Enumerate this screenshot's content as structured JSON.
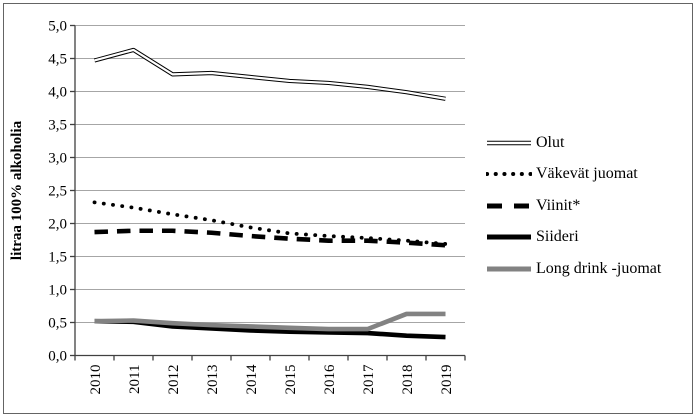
{
  "chart_data": {
    "type": "line",
    "title": "",
    "ylabel": "litraa 100% alkoholia",
    "xlabel": "",
    "categories": [
      "2010",
      "2011",
      "2012",
      "2013",
      "2014",
      "2015",
      "2016",
      "2017",
      "2018",
      "2019"
    ],
    "ylim": [
      0,
      5
    ],
    "ytick_step": 0.5,
    "ytick_labels": [
      "0,0",
      "0,5",
      "1,0",
      "1,5",
      "2,0",
      "2,5",
      "3,0",
      "3,5",
      "4,0",
      "4,5",
      "5,0"
    ],
    "grid": "horizontal-only",
    "legend_position": "right",
    "series": [
      {
        "name": "Olut",
        "style": "double-thin-black",
        "color": "#000000",
        "values": [
          4.47,
          4.63,
          4.26,
          4.28,
          4.22,
          4.16,
          4.13,
          4.07,
          3.99,
          3.89
        ]
      },
      {
        "name": "Väkevät juomat",
        "style": "dotted-black",
        "color": "#000000",
        "values": [
          2.32,
          2.24,
          2.14,
          2.05,
          1.94,
          1.85,
          1.81,
          1.78,
          1.74,
          1.69
        ]
      },
      {
        "name": "Viinit*",
        "style": "dashed-thick-black",
        "color": "#000000",
        "values": [
          1.87,
          1.89,
          1.89,
          1.86,
          1.81,
          1.77,
          1.74,
          1.74,
          1.71,
          1.67
        ]
      },
      {
        "name": "Siideri",
        "style": "solid-thick-black",
        "color": "#000000",
        "values": [
          0.52,
          0.51,
          0.44,
          0.41,
          0.38,
          0.36,
          0.35,
          0.34,
          0.3,
          0.28
        ]
      },
      {
        "name": "Long drink -juomat",
        "style": "solid-thick-gray",
        "color": "#828282",
        "values": [
          0.52,
          0.53,
          0.49,
          0.46,
          0.44,
          0.42,
          0.4,
          0.4,
          0.63,
          0.63
        ]
      }
    ],
    "colors": {
      "line_black": "#000000",
      "line_gray": "#828282",
      "gridline": "#a6a6a6",
      "axis": "#404040",
      "frame_border": "#646464",
      "background": "#ffffff",
      "text": "#000000"
    }
  }
}
